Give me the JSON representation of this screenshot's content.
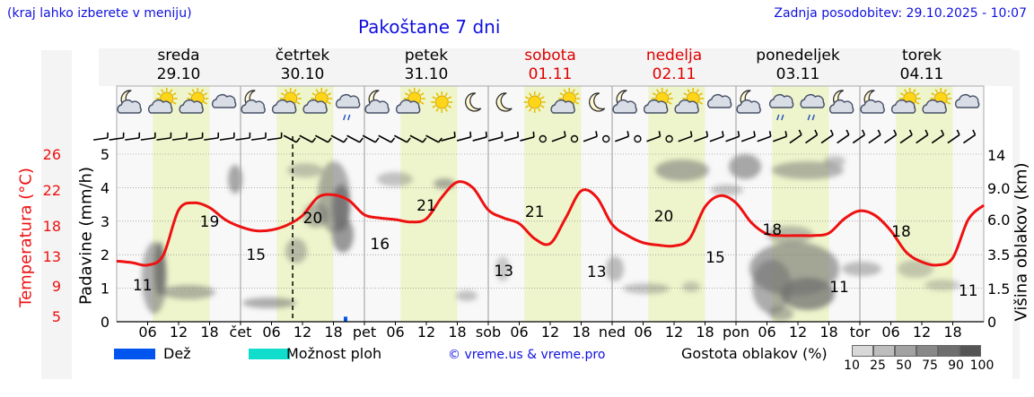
{
  "header": {
    "region_hint": "(kraj lahko izberete v meniju)",
    "title": "Pakoštane 7 dni",
    "last_update": "Zadnja posodobitev: 29.10.2025 - 10:07"
  },
  "colors": {
    "weekday": "#000000",
    "weekend": "#e00000",
    "temperature": "#ee1111",
    "daylight": "#eef5cc",
    "night": "#f8f8f8",
    "rain": "#0055ee",
    "rain_possible": "#11ddcc",
    "link": "#1010e0"
  },
  "days": [
    {
      "name": "sreda",
      "date": "29.10",
      "weekend": false,
      "icons": [
        "moon-cloud-icon",
        "sun-cloud-icon",
        "sun-cloud-icon",
        "cloud-icon"
      ]
    },
    {
      "name": "četrtek",
      "date": "30.10",
      "weekend": false,
      "icons": [
        "moon-cloud-icon",
        "sun-cloud-icon",
        "sun-cloud-icon",
        "rain-cloud-icon"
      ]
    },
    {
      "name": "petek",
      "date": "31.10",
      "weekend": false,
      "icons": [
        "moon-cloud-icon",
        "sun-cloud-icon",
        "sun-icon",
        "moon-icon"
      ]
    },
    {
      "name": "sobota",
      "date": "01.11",
      "weekend": true,
      "icons": [
        "moon-icon",
        "sun-icon",
        "sun-cloud-icon",
        "moon-icon"
      ]
    },
    {
      "name": "nedelja",
      "date": "02.11",
      "weekend": true,
      "icons": [
        "moon-cloud-icon",
        "sun-cloud-icon",
        "sun-cloud-icon",
        "cloud-icon"
      ]
    },
    {
      "name": "ponedeljek",
      "date": "03.11",
      "weekend": false,
      "icons": [
        "moon-cloud-icon",
        "drizzle-cloud-icon",
        "drizzle-cloud-icon",
        "moon-cloud-icon"
      ]
    },
    {
      "name": "torek",
      "date": "04.11",
      "weekend": false,
      "icons": [
        "moon-cloud-icon",
        "sun-cloud-icon",
        "sun-cloud-icon",
        "cloud-icon"
      ]
    }
  ],
  "chart_data": {
    "type": "line",
    "title": "Pakoštane 7 dni",
    "x_range_hours": [
      0,
      168
    ],
    "x_tick_labels": [
      "06",
      "12",
      "18",
      "čet",
      "06",
      "12",
      "18",
      "pet",
      "06",
      "12",
      "18",
      "sob",
      "06",
      "12",
      "18",
      "ned",
      "06",
      "12",
      "18",
      "pon",
      "06",
      "12",
      "18",
      "tor",
      "06",
      "12",
      "18"
    ],
    "now_hour": 34.1,
    "y_left": {
      "label": "Padavine (mm/h)",
      "range": [
        0,
        5
      ],
      "ticks": [
        "0",
        "1",
        "2",
        "3",
        "4",
        "5"
      ]
    },
    "y_left_temp": {
      "label": "Temperatura (°C)",
      "ticks": [
        "5",
        "9",
        "13",
        "18",
        "22",
        "26"
      ]
    },
    "y_right": {
      "label": "Višina oblakov (km)",
      "ticks": [
        "0",
        "1.5",
        "3.5",
        "6.0",
        "9.0",
        "14"
      ]
    },
    "temperature_series": {
      "name": "Temperatura",
      "hours": [
        0,
        3,
        6,
        9,
        12,
        15,
        18,
        21,
        24,
        27,
        30,
        33,
        36,
        39,
        42,
        45,
        48,
        51,
        54,
        57,
        60,
        63,
        66,
        69,
        72,
        75,
        78,
        81,
        84,
        87,
        90,
        93,
        96,
        99,
        102,
        105,
        108,
        111,
        114,
        117,
        120,
        123,
        126,
        129,
        132,
        135,
        138,
        141,
        144,
        147,
        150,
        153,
        156,
        159,
        162,
        165,
        168
      ],
      "values": [
        12.6,
        12.4,
        12.1,
        13.3,
        19.0,
        19.9,
        19.3,
        17.8,
        16.9,
        16.4,
        16.5,
        17.1,
        18.3,
        20.6,
        20.9,
        20.2,
        18.4,
        18.0,
        17.8,
        17.5,
        17.9,
        20.6,
        22.5,
        21.8,
        19.0,
        18.0,
        17.3,
        15.4,
        14.8,
        18.0,
        21.4,
        20.6,
        17.2,
        15.8,
        14.9,
        14.6,
        14.5,
        15.4,
        19.4,
        20.8,
        19.9,
        17.4,
        16.0,
        15.8,
        15.8,
        15.8,
        16.1,
        17.9,
        18.9,
        18.3,
        16.4,
        13.7,
        12.5,
        12.1,
        13.0,
        17.8,
        19.6
      ]
    },
    "temp_labels": [
      {
        "hour": 5,
        "text": "11"
      },
      {
        "hour": 18,
        "text": "19"
      },
      {
        "hour": 27,
        "text": "15"
      },
      {
        "hour": 38,
        "text": "20"
      },
      {
        "hour": 51,
        "text": "16"
      },
      {
        "hour": 60,
        "text": "21"
      },
      {
        "hour": 75,
        "text": "13"
      },
      {
        "hour": 81,
        "text": "21"
      },
      {
        "hour": 93,
        "text": "13"
      },
      {
        "hour": 106,
        "text": "20"
      },
      {
        "hour": 116,
        "text": "15"
      },
      {
        "hour": 127,
        "text": "18"
      },
      {
        "hour": 140,
        "text": "11"
      },
      {
        "hour": 152,
        "text": "18"
      },
      {
        "hour": 165,
        "text": "11"
      }
    ],
    "precipitation": [
      {
        "hour": 44,
        "mm": 0.15
      }
    ]
  },
  "legend": {
    "rain_label": "Dež",
    "rain_possible_label": "Možnost ploh",
    "credit": "© vreme.us & vreme.pro",
    "cloud_density_label": "Gostota oblakov (%)",
    "density_steps": [
      "10",
      "25",
      "50",
      "75",
      "90",
      "100"
    ],
    "density_colors": [
      "#d8d8d8",
      "#bdbdbd",
      "#a2a2a2",
      "#888888",
      "#6e6e6e",
      "#555555"
    ]
  }
}
